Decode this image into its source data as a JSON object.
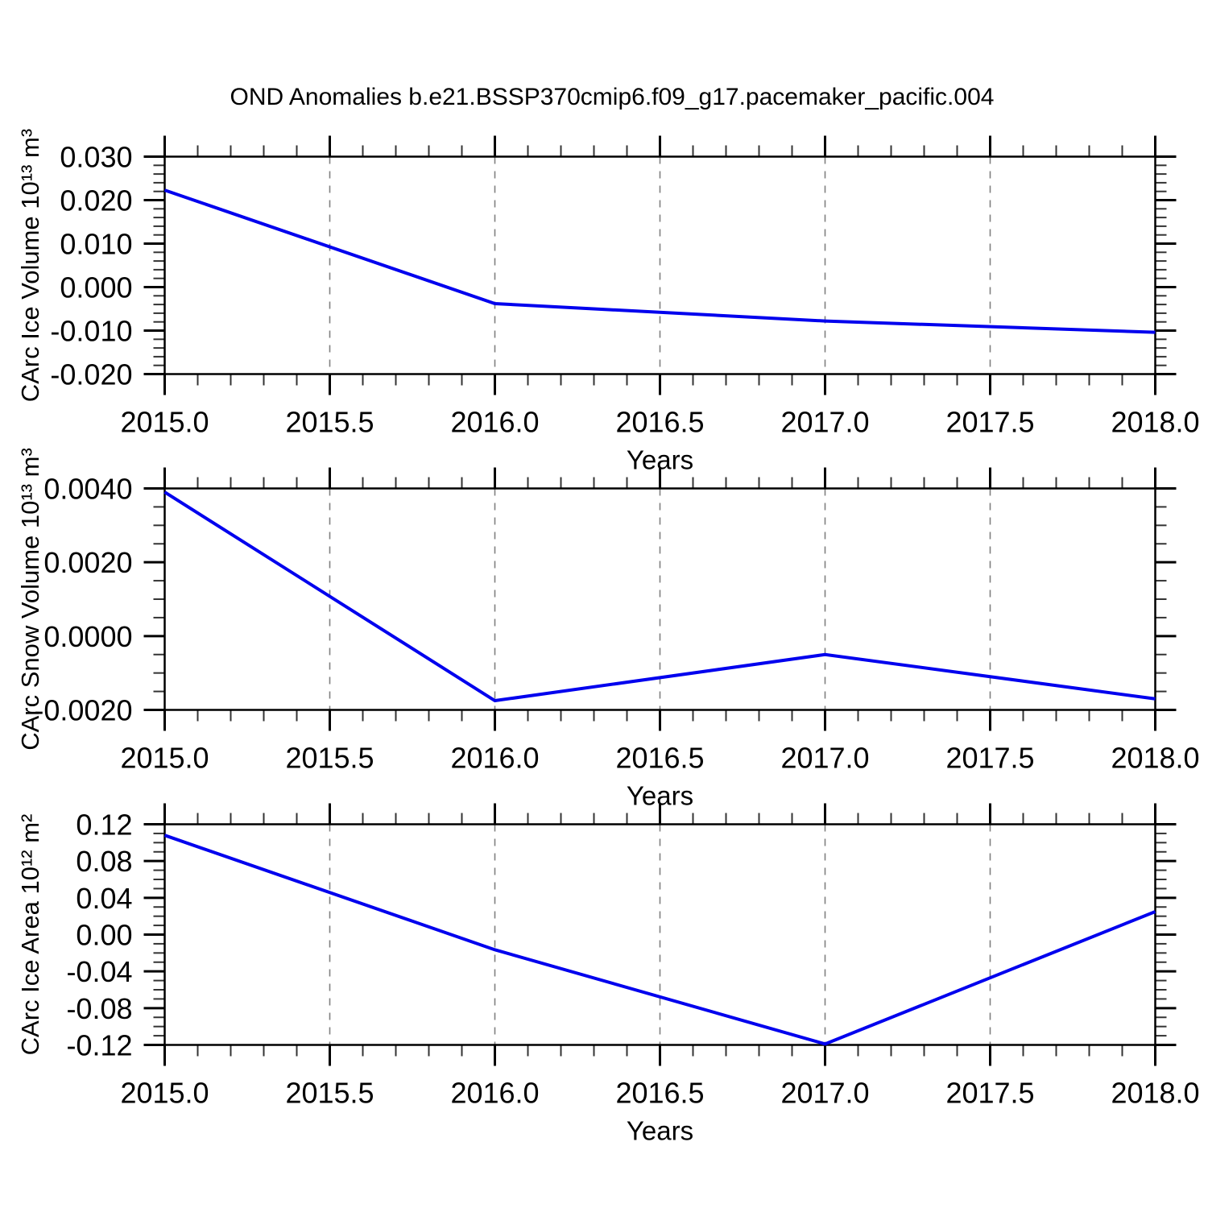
{
  "title": "OND Anomalies b.e21.BSSP370cmip6.f09_g17.pacemaker_pacific.004",
  "colors": {
    "line": "#0000ee",
    "frame": "#000000",
    "grid": "#808080",
    "minor_tick": "#333333",
    "text": "#000000",
    "background": "#ffffff"
  },
  "chart_data": [
    {
      "type": "line",
      "ylabel": "CArc Ice Volume 10¹³ m³",
      "xlabel": "Years",
      "x": [
        2015.0,
        2016.0,
        2017.0,
        2018.0
      ],
      "y": [
        0.0223,
        -0.0038,
        -0.0078,
        -0.0104
      ],
      "xlim": [
        2015.0,
        2018.0
      ],
      "ylim": [
        -0.02,
        0.03
      ],
      "xticks": [
        2015.0,
        2015.5,
        2016.0,
        2016.5,
        2017.0,
        2017.5,
        2018.0
      ],
      "xtick_labels": [
        "2015.0",
        "2015.5",
        "2016.0",
        "2016.5",
        "2017.0",
        "2017.5",
        "2018.0"
      ],
      "xminor_step": 0.1,
      "yticks": [
        0.03,
        0.02,
        0.01,
        0.0,
        -0.01,
        -0.02
      ],
      "ytick_labels": [
        "0.030",
        "0.020",
        "0.010",
        "0.000",
        "-0.010",
        "-0.020"
      ],
      "yminor_step": 0.002,
      "grid_x": [
        2015.5,
        2016.0,
        2016.5,
        2017.0,
        2017.5
      ],
      "grid_style": "dashed",
      "legend": "none"
    },
    {
      "type": "line",
      "ylabel": "CArc Snow Volume 10¹³ m³",
      "xlabel": "Years",
      "x": [
        2015.0,
        2016.0,
        2017.0,
        2018.0
      ],
      "y": [
        0.0039,
        -0.00175,
        -0.0005,
        -0.0017
      ],
      "xlim": [
        2015.0,
        2018.0
      ],
      "ylim": [
        -0.002,
        0.004
      ],
      "xticks": [
        2015.0,
        2015.5,
        2016.0,
        2016.5,
        2017.0,
        2017.5,
        2018.0
      ],
      "xtick_labels": [
        "2015.0",
        "2015.5",
        "2016.0",
        "2016.5",
        "2017.0",
        "2017.5",
        "2018.0"
      ],
      "xminor_step": 0.1,
      "yticks": [
        0.004,
        0.002,
        0.0,
        -0.002
      ],
      "ytick_labels": [
        "0.0040",
        "0.0020",
        "0.0000",
        "-0.0020"
      ],
      "yminor_step": 0.0005,
      "grid_x": [
        2015.5,
        2016.0,
        2016.5,
        2017.0,
        2017.5
      ],
      "grid_style": "dashed",
      "legend": "none"
    },
    {
      "type": "line",
      "ylabel": "CArc Ice Area 10¹² m²",
      "xlabel": "Years",
      "x": [
        2015.0,
        2016.0,
        2017.0,
        2018.0
      ],
      "y": [
        0.108,
        -0.0165,
        -0.119,
        0.025
      ],
      "xlim": [
        2015.0,
        2018.0
      ],
      "ylim": [
        -0.12,
        0.12
      ],
      "xticks": [
        2015.0,
        2015.5,
        2016.0,
        2016.5,
        2017.0,
        2017.5,
        2018.0
      ],
      "xtick_labels": [
        "2015.0",
        "2015.5",
        "2016.0",
        "2016.5",
        "2017.0",
        "2017.5",
        "2018.0"
      ],
      "xminor_step": 0.1,
      "yticks": [
        0.12,
        0.08,
        0.04,
        0.0,
        -0.04,
        -0.08,
        -0.12
      ],
      "ytick_labels": [
        "0.12",
        "0.08",
        "0.04",
        "0.00",
        "-0.04",
        "-0.08",
        "-0.12"
      ],
      "yminor_step": 0.01,
      "grid_x": [
        2015.5,
        2016.0,
        2016.5,
        2017.0,
        2017.5
      ],
      "grid_style": "dashed",
      "legend": "none"
    }
  ]
}
